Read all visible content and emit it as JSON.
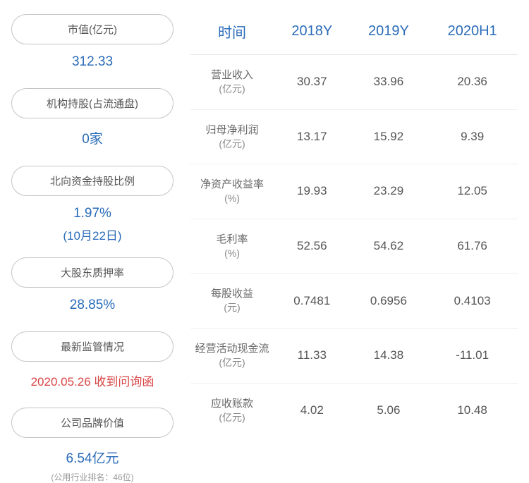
{
  "leftPanel": {
    "items": [
      {
        "label": "市值(亿元)",
        "value": "312.33",
        "valueClass": "value"
      },
      {
        "label": "机构持股(占流通盘)",
        "value": "0家",
        "valueClass": "value"
      },
      {
        "label": "北向资金持股比例",
        "value": "1.97%",
        "sub": "(10月22日)",
        "valueClass": "value"
      },
      {
        "label": "大股东质押率",
        "value": "28.85%",
        "valueClass": "value"
      },
      {
        "label": "最新监管情况",
        "value": "2020.05.26 收到问询函",
        "valueClass": "value-red"
      },
      {
        "label": "公司品牌价值",
        "value": "6.54亿元",
        "note": "(公用行业排名：46位)",
        "valueClass": "value"
      }
    ]
  },
  "table": {
    "headers": [
      "时间",
      "2018Y",
      "2019Y",
      "2020H1"
    ],
    "rows": [
      {
        "label": "营业收入",
        "unit": "(亿元)",
        "values": [
          "30.37",
          "33.96",
          "20.36"
        ]
      },
      {
        "label": "归母净利润",
        "unit": "(亿元)",
        "values": [
          "13.17",
          "15.92",
          "9.39"
        ]
      },
      {
        "label": "净资产收益率",
        "unit": "(%)",
        "values": [
          "19.93",
          "23.29",
          "12.05"
        ]
      },
      {
        "label": "毛利率",
        "unit": "(%)",
        "values": [
          "52.56",
          "54.62",
          "61.76"
        ]
      },
      {
        "label": "每股收益",
        "unit": "(元)",
        "values": [
          "0.7481",
          "0.6956",
          "0.4103"
        ]
      },
      {
        "label": "经营活动现金流",
        "unit": "(亿元)",
        "values": [
          "11.33",
          "14.38",
          "-11.01"
        ]
      },
      {
        "label": "应收账款",
        "unit": "(亿元)",
        "values": [
          "4.02",
          "5.06",
          "10.48"
        ]
      }
    ]
  }
}
